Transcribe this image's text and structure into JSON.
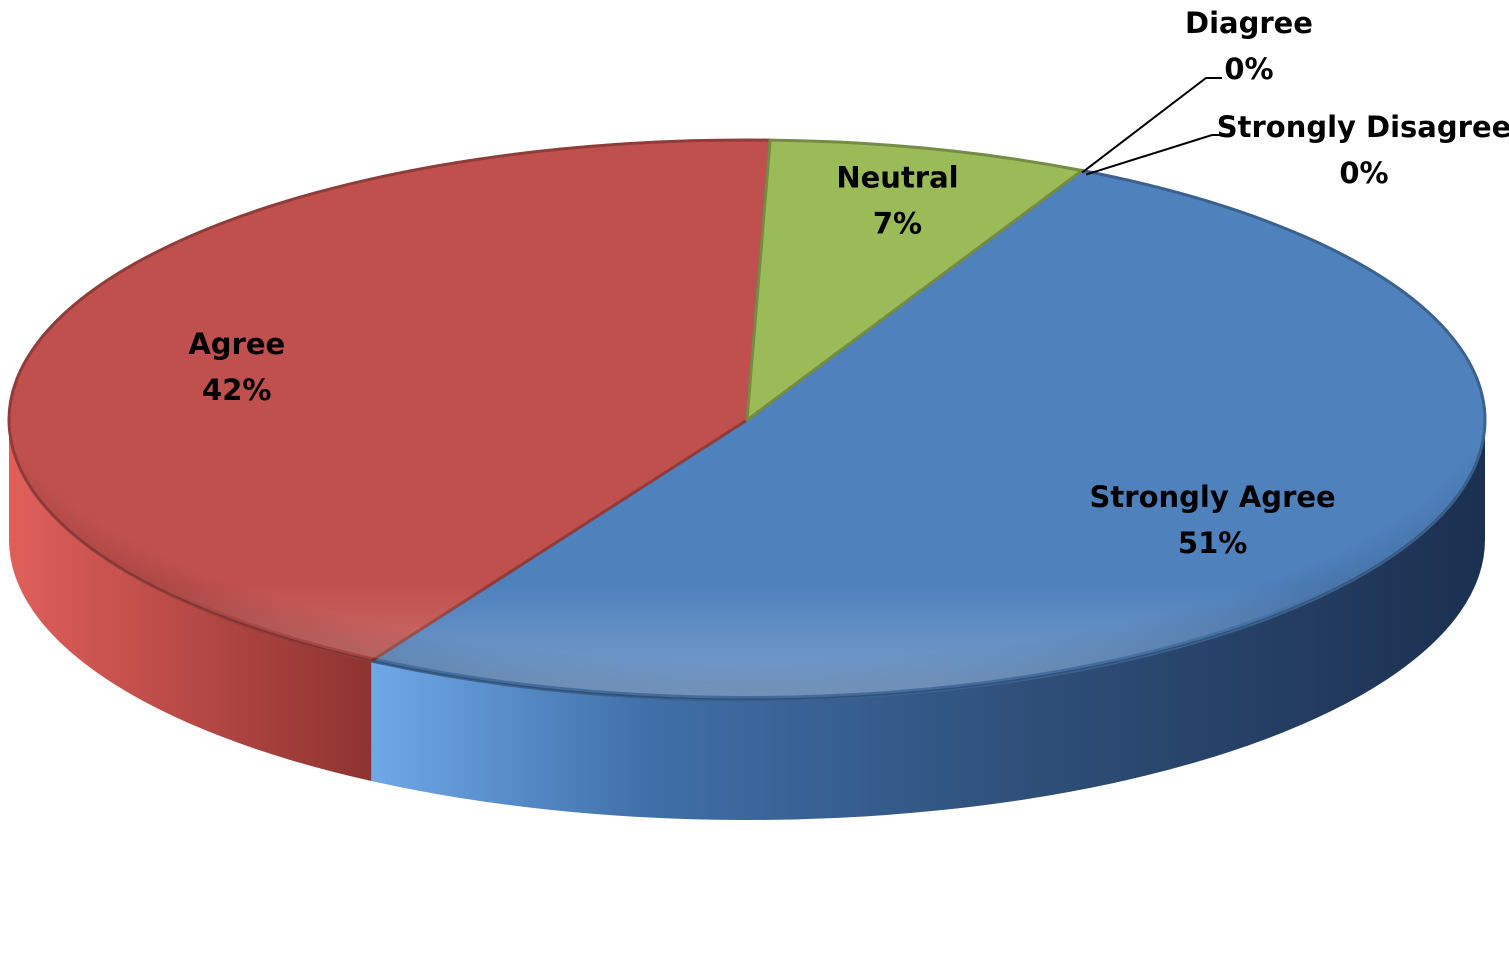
{
  "chart_data": {
    "type": "pie",
    "style": "3d",
    "title": "",
    "slices": [
      {
        "label": "Strongly Agree",
        "pct_label": "51%",
        "value": 51,
        "color": "#4F81BD"
      },
      {
        "label": "Agree",
        "pct_label": "42%",
        "value": 42,
        "color": "#C0504D"
      },
      {
        "label": "Neutral",
        "pct_label": "7%",
        "value": 7,
        "color": "#9BBB59"
      },
      {
        "label": "Diagree",
        "pct_label": "0%",
        "value": 0,
        "color": "#8064A2"
      },
      {
        "label": "Strongly Disagree",
        "pct_label": "0%",
        "value": 0,
        "color": "#4BACC6"
      }
    ],
    "legend": "none",
    "data_labels": "category and percentage"
  }
}
